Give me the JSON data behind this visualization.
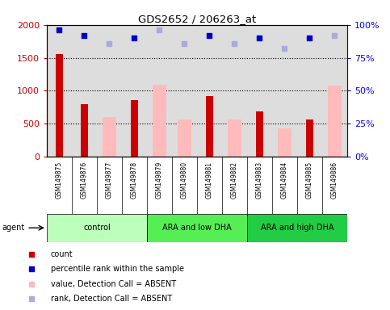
{
  "title": "GDS2652 / 206263_at",
  "samples": [
    "GSM149875",
    "GSM149876",
    "GSM149877",
    "GSM149878",
    "GSM149879",
    "GSM149880",
    "GSM149881",
    "GSM149882",
    "GSM149883",
    "GSM149884",
    "GSM149885",
    "GSM149886"
  ],
  "count_values": [
    1560,
    800,
    null,
    860,
    null,
    null,
    920,
    null,
    690,
    null,
    560,
    null
  ],
  "absent_values": [
    null,
    null,
    600,
    null,
    1090,
    560,
    null,
    560,
    null,
    430,
    null,
    1080
  ],
  "percentile_present": [
    96,
    92,
    null,
    90,
    null,
    null,
    92,
    null,
    90,
    null,
    90,
    null
  ],
  "percentile_absent": [
    null,
    null,
    86,
    null,
    96,
    86,
    null,
    86,
    null,
    82,
    null,
    92
  ],
  "groups": [
    {
      "label": "control",
      "start": 0,
      "end": 3,
      "color": "#bbffbb"
    },
    {
      "label": "ARA and low DHA",
      "start": 4,
      "end": 7,
      "color": "#55ee55"
    },
    {
      "label": "ARA and high DHA",
      "start": 8,
      "end": 11,
      "color": "#22cc44"
    }
  ],
  "ylim": [
    0,
    2000
  ],
  "yticks": [
    0,
    500,
    1000,
    1500,
    2000
  ],
  "ytick_labels": [
    "0",
    "500",
    "1000",
    "1500",
    "2000"
  ],
  "y2lim": [
    0,
    100
  ],
  "y2ticks": [
    0,
    25,
    50,
    75,
    100
  ],
  "y2tick_labels": [
    "0%",
    "25%",
    "50%",
    "75%",
    "100%"
  ],
  "count_color": "#cc0000",
  "absent_bar_color": "#ffbbbb",
  "present_dot_color": "#0000cc",
  "absent_dot_color": "#aaaadd",
  "plot_bg_color": "#dddddd",
  "label_bg_color": "#cccccc",
  "legend_items": [
    {
      "label": "count",
      "color": "#cc0000"
    },
    {
      "label": "percentile rank within the sample",
      "color": "#0000cc"
    },
    {
      "label": "value, Detection Call = ABSENT",
      "color": "#ffbbbb"
    },
    {
      "label": "rank, Detection Call = ABSENT",
      "color": "#aaaadd"
    }
  ]
}
